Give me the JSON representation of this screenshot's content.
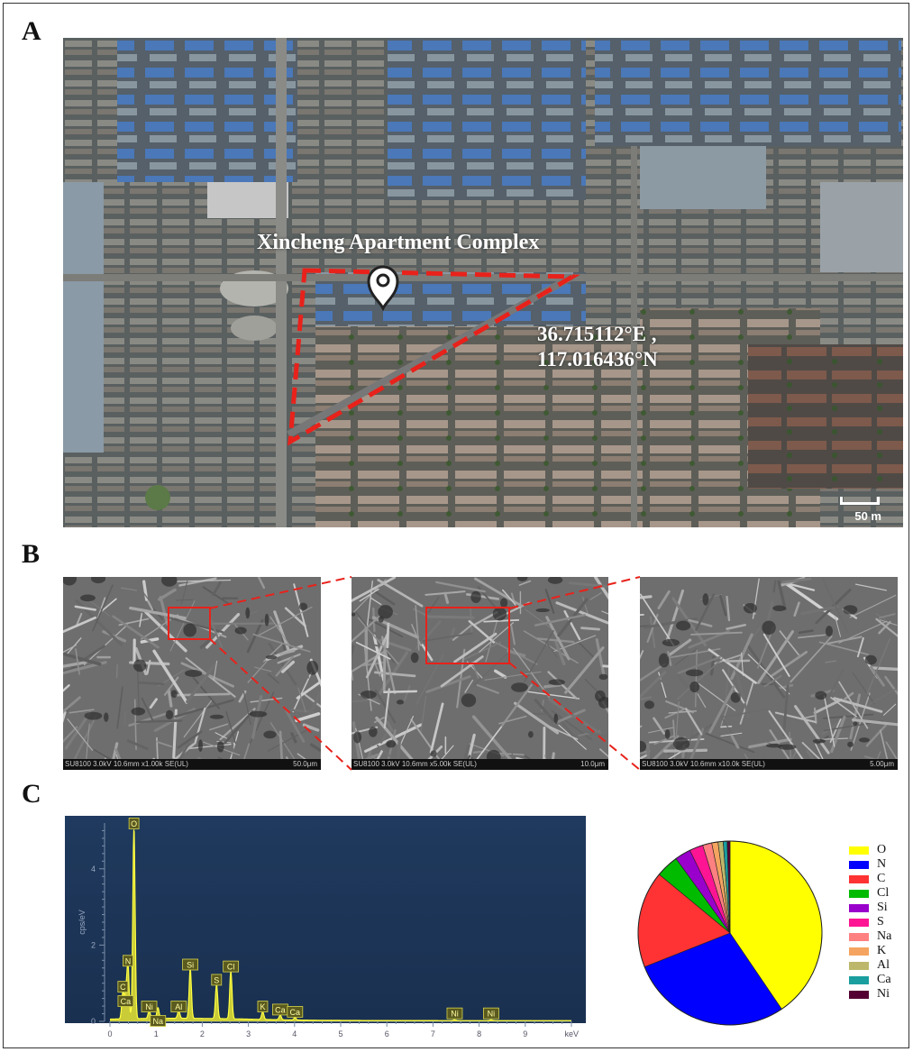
{
  "panels": {
    "a": "A",
    "b": "B",
    "c": "C"
  },
  "map": {
    "title": "Xincheng Apartment Complex",
    "coord_line1": "36.715112°E ,",
    "coord_line2": "117.016436°N",
    "scale": "50 m",
    "marker_icon": "location-pin-icon",
    "boundary_color": "#e8221b"
  },
  "sem": [
    {
      "info": "SU8100 3.0kV 10.6mm x1.00k SE(UL)",
      "scale": "50.0μm"
    },
    {
      "info": "SU8100 3.0kV 10.6mm x5.00k SE(UL)",
      "scale": "10.0μm"
    },
    {
      "info": "SU8100 3.0kV 10.6mm x10.0k SE(UL)",
      "scale": "5.00μm"
    }
  ],
  "chart_data": [
    {
      "type": "line",
      "ylabel": "cps/eV",
      "xunit": "keV",
      "xlim": [
        0,
        10
      ],
      "ylim": [
        0,
        5.2
      ],
      "xticks": [
        0,
        1,
        2,
        3,
        4,
        5,
        6,
        7,
        8,
        9
      ],
      "yticks": [
        0,
        2,
        4
      ],
      "peaks": [
        {
          "label": "O",
          "x": 0.52,
          "y": 5.0
        },
        {
          "label": "N",
          "x": 0.39,
          "y": 1.4
        },
        {
          "label": "C",
          "x": 0.28,
          "y": 0.72
        },
        {
          "label": "Ca",
          "x": 0.34,
          "y": 0.55
        },
        {
          "label": "Ni",
          "x": 0.85,
          "y": 0.2
        },
        {
          "label": "Na",
          "x": 1.04,
          "y": 0.28
        },
        {
          "label": "Al",
          "x": 1.49,
          "y": 0.2
        },
        {
          "label": "Si",
          "x": 1.74,
          "y": 1.3
        },
        {
          "label": "S",
          "x": 2.31,
          "y": 0.9
        },
        {
          "label": "Cl",
          "x": 2.62,
          "y": 1.25
        },
        {
          "label": "K",
          "x": 3.31,
          "y": 0.2
        },
        {
          "label": "Ca",
          "x": 3.69,
          "y": 0.12
        },
        {
          "label": "Ca",
          "x": 4.01,
          "y": 0.06
        },
        {
          "label": "Ni",
          "x": 7.47,
          "y": 0.02
        },
        {
          "label": "Ni",
          "x": 8.26,
          "y": 0.02
        }
      ]
    },
    {
      "type": "pie",
      "labels": [
        "O",
        "N",
        "C",
        "Cl",
        "Si",
        "S",
        "Na",
        "K",
        "Al",
        "Ca",
        "Ni"
      ],
      "colors": [
        "#ffff00",
        "#0000ff",
        "#ff3333",
        "#00bb00",
        "#9900cc",
        "#ff1493",
        "#ff8080",
        "#f4a460",
        "#bdb76b",
        "#1a9e9e",
        "#550033"
      ],
      "values": [
        40.5,
        28.5,
        17.0,
        4.0,
        2.8,
        2.4,
        1.6,
        1.1,
        0.9,
        0.7,
        0.5
      ]
    }
  ]
}
